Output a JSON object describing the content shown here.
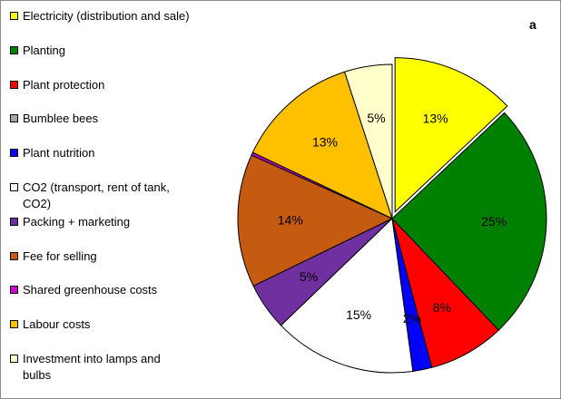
{
  "panel_letter": "a",
  "chart_data": {
    "type": "pie",
    "title": "",
    "legend_placement": "left",
    "slices": [
      {
        "name": "Electricity (distribution and sale)",
        "value": 13,
        "label": "13%",
        "color": "#ffff00",
        "exploded": true
      },
      {
        "name": "Planting",
        "value": 25,
        "label": "25%",
        "color": "#008000"
      },
      {
        "name": "Plant protection",
        "value": 8,
        "label": "8%",
        "color": "#ff0000"
      },
      {
        "name": "Bumblee bees",
        "value": 0,
        "label": "",
        "color": "#a6a6a6"
      },
      {
        "name": "Plant nutrition",
        "value": 2,
        "label": "2%",
        "color": "#0000ff"
      },
      {
        "name": "CO2 (transport, rent of tank, CO2)",
        "value": 15,
        "label": "15%",
        "color": "#ffffff"
      },
      {
        "name": "Packing + marketing",
        "value": 5,
        "label": "5%",
        "color": "#7030a0"
      },
      {
        "name": "Fee for selling",
        "value": 14,
        "label": "14%",
        "color": "#c55a11"
      },
      {
        "name": "Shared greenhouse costs",
        "value": 0.3,
        "label": "",
        "color": "#cc00cc"
      },
      {
        "name": "Labour costs",
        "value": 13,
        "label": "13%",
        "color": "#ffc000"
      },
      {
        "name": "Investment into lamps and bulbs",
        "value": 5,
        "label": "5%",
        "color": "#ffffcc"
      }
    ]
  }
}
